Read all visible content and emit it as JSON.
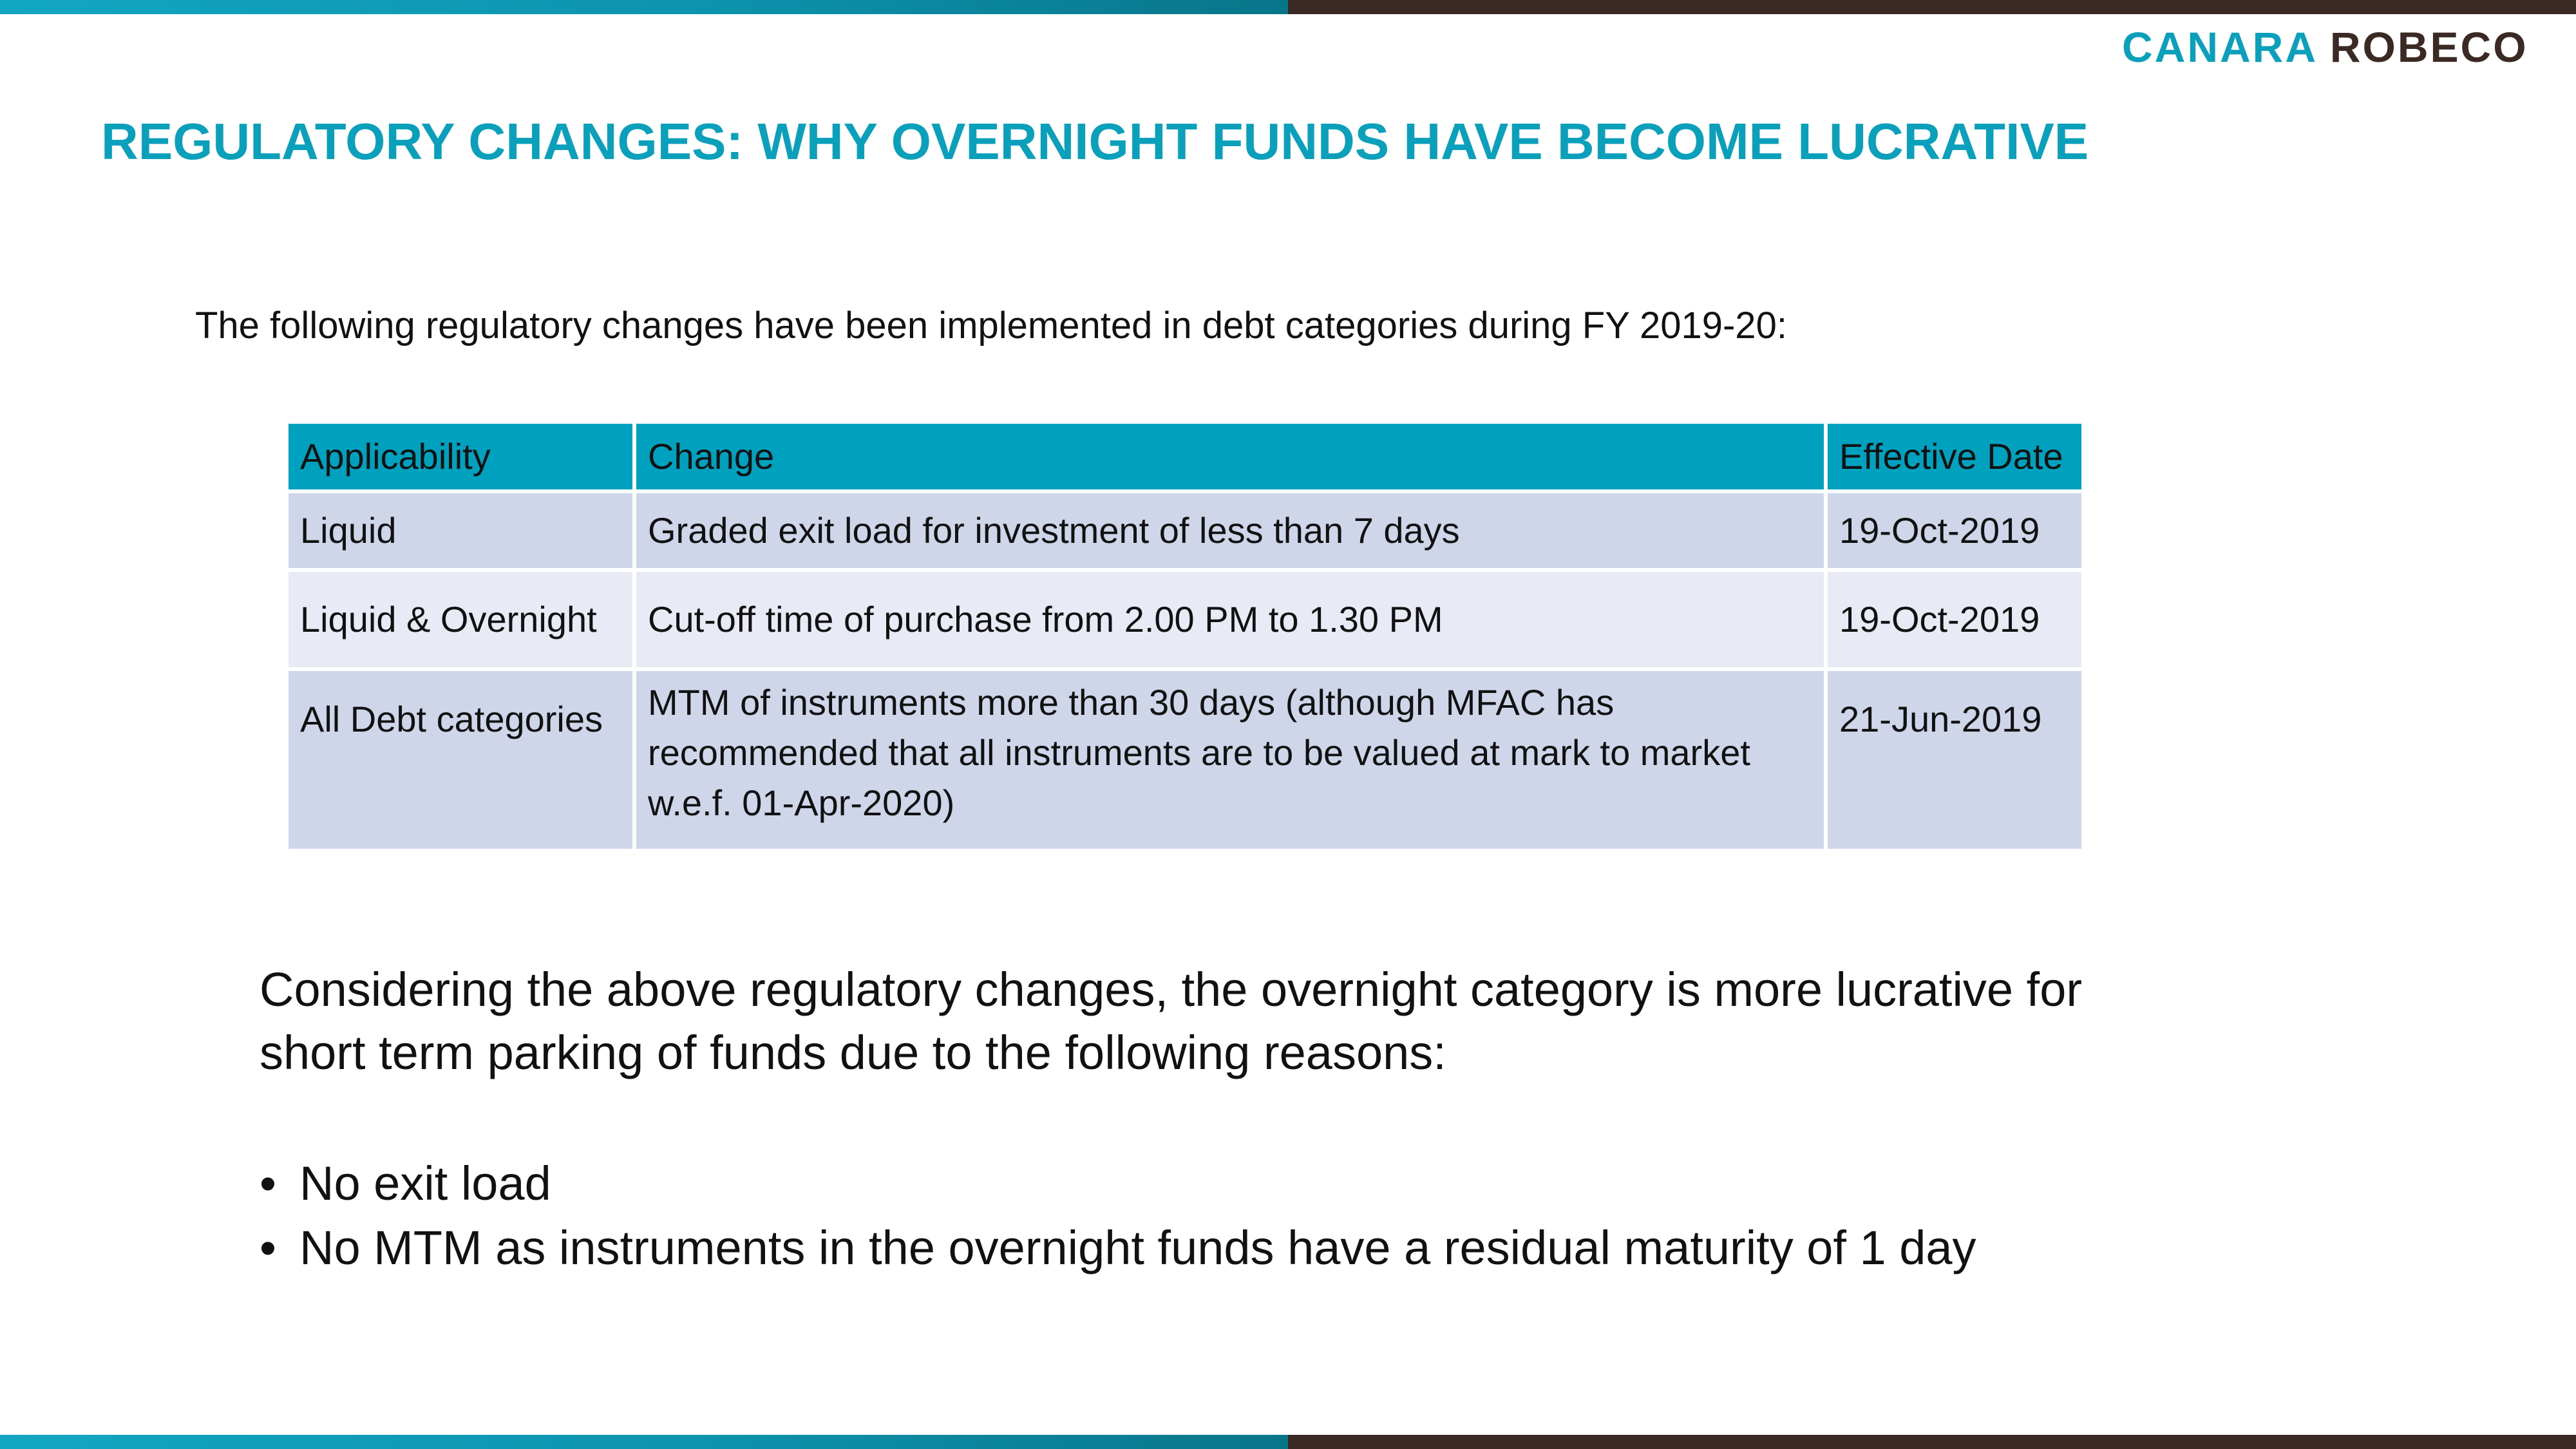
{
  "logo": {
    "word1": "CANARA",
    "word2": "ROBECO"
  },
  "title": "REGULATORY CHANGES: WHY OVERNIGHT FUNDS HAVE BECOME LUCRATIVE",
  "intro": "The following regulatory changes have been implemented in debt categories during FY 2019-20:",
  "table": {
    "headers": [
      "Applicability",
      "Change",
      "Effective Date"
    ],
    "rows": [
      {
        "applicability": "Liquid",
        "change": "Graded exit load for investment of less than 7 days",
        "date": "19-Oct-2019"
      },
      {
        "applicability": "Liquid & Overnight",
        "change": "Cut-off time of purchase from 2.00 PM to 1.30 PM",
        "date": "19-Oct-2019"
      },
      {
        "applicability": "All Debt categories",
        "change": "MTM of instruments more than 30 days (although MFAC has recommended that  all instruments are to be valued at mark to market w.e.f. 01-Apr-2020)",
        "date": "21-Jun-2019"
      }
    ]
  },
  "conclusion": "Considering the above regulatory changes, the overnight category is more lucrative for short term parking of funds due to the following reasons:",
  "bullets": [
    "No exit load",
    "No MTM as instruments in the overnight funds have a residual maturity of 1 day"
  ],
  "bullet_glyph": "•",
  "colors": {
    "accent_teal": "#0aa0bc",
    "header_teal": "#00a0bf",
    "brand_brown": "#3b2a24",
    "row_dark": "#cfd6ea",
    "row_light": "#e8ebf5"
  }
}
